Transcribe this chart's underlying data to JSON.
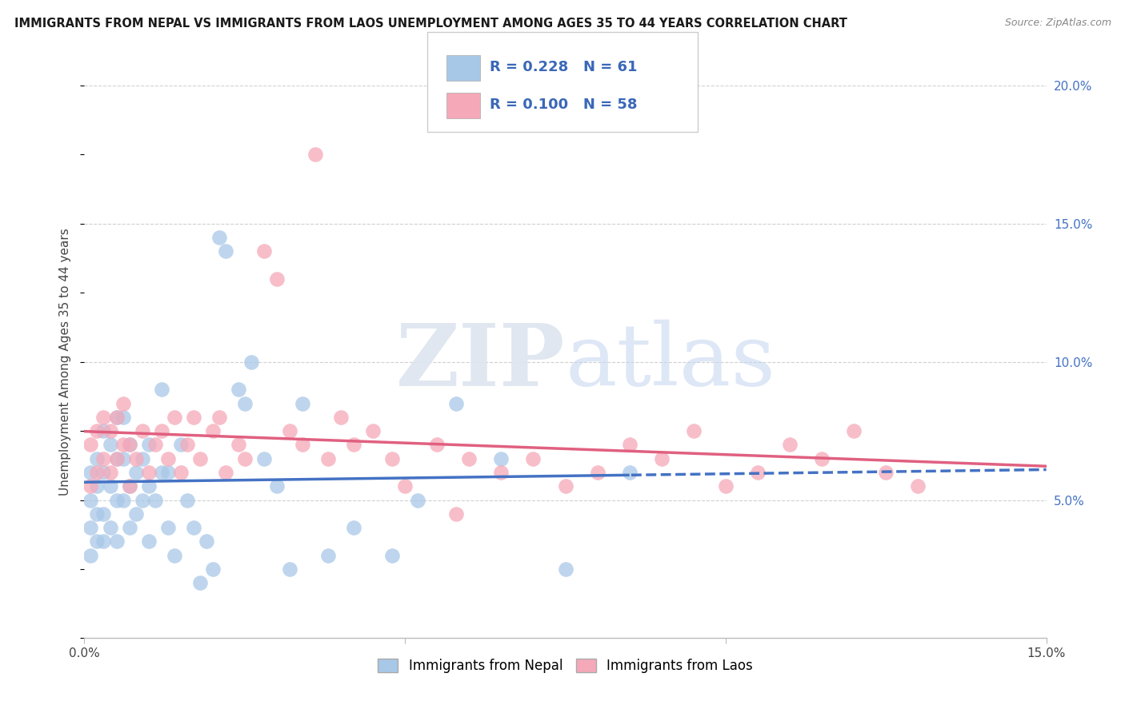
{
  "title": "IMMIGRANTS FROM NEPAL VS IMMIGRANTS FROM LAOS UNEMPLOYMENT AMONG AGES 35 TO 44 YEARS CORRELATION CHART",
  "source": "Source: ZipAtlas.com",
  "ylabel": "Unemployment Among Ages 35 to 44 years",
  "xlim": [
    0,
    0.15
  ],
  "ylim": [
    0,
    0.2
  ],
  "nepal_color": "#a8c8e8",
  "laos_color": "#f5a8b8",
  "nepal_line_color": "#4472c4",
  "laos_line_color": "#e06080",
  "nepal_R": 0.228,
  "nepal_N": 61,
  "laos_R": 0.1,
  "laos_N": 58,
  "nepal_x": [
    0.001,
    0.001,
    0.001,
    0.001,
    0.002,
    0.002,
    0.002,
    0.002,
    0.003,
    0.003,
    0.003,
    0.003,
    0.004,
    0.004,
    0.004,
    0.005,
    0.005,
    0.005,
    0.005,
    0.006,
    0.006,
    0.006,
    0.007,
    0.007,
    0.007,
    0.008,
    0.008,
    0.009,
    0.009,
    0.01,
    0.01,
    0.01,
    0.011,
    0.012,
    0.012,
    0.013,
    0.013,
    0.014,
    0.015,
    0.016,
    0.017,
    0.018,
    0.019,
    0.02,
    0.021,
    0.022,
    0.024,
    0.025,
    0.026,
    0.028,
    0.03,
    0.032,
    0.034,
    0.038,
    0.042,
    0.048,
    0.052,
    0.058,
    0.065,
    0.075,
    0.085
  ],
  "nepal_y": [
    0.03,
    0.04,
    0.05,
    0.06,
    0.035,
    0.045,
    0.055,
    0.065,
    0.035,
    0.045,
    0.06,
    0.075,
    0.04,
    0.055,
    0.07,
    0.035,
    0.05,
    0.065,
    0.08,
    0.05,
    0.065,
    0.08,
    0.04,
    0.055,
    0.07,
    0.045,
    0.06,
    0.05,
    0.065,
    0.035,
    0.055,
    0.07,
    0.05,
    0.06,
    0.09,
    0.04,
    0.06,
    0.03,
    0.07,
    0.05,
    0.04,
    0.02,
    0.035,
    0.025,
    0.145,
    0.14,
    0.09,
    0.085,
    0.1,
    0.065,
    0.055,
    0.025,
    0.085,
    0.03,
    0.04,
    0.03,
    0.05,
    0.085,
    0.065,
    0.025,
    0.06
  ],
  "laos_x": [
    0.001,
    0.001,
    0.002,
    0.002,
    0.003,
    0.003,
    0.004,
    0.004,
    0.005,
    0.005,
    0.006,
    0.006,
    0.007,
    0.007,
    0.008,
    0.009,
    0.01,
    0.011,
    0.012,
    0.013,
    0.014,
    0.015,
    0.016,
    0.017,
    0.018,
    0.02,
    0.021,
    0.022,
    0.024,
    0.025,
    0.028,
    0.03,
    0.032,
    0.034,
    0.036,
    0.038,
    0.04,
    0.042,
    0.045,
    0.048,
    0.05,
    0.055,
    0.058,
    0.06,
    0.065,
    0.07,
    0.075,
    0.08,
    0.085,
    0.09,
    0.095,
    0.1,
    0.105,
    0.11,
    0.115,
    0.12,
    0.125,
    0.13
  ],
  "laos_y": [
    0.055,
    0.07,
    0.06,
    0.075,
    0.065,
    0.08,
    0.06,
    0.075,
    0.065,
    0.08,
    0.07,
    0.085,
    0.055,
    0.07,
    0.065,
    0.075,
    0.06,
    0.07,
    0.075,
    0.065,
    0.08,
    0.06,
    0.07,
    0.08,
    0.065,
    0.075,
    0.08,
    0.06,
    0.07,
    0.065,
    0.14,
    0.13,
    0.075,
    0.07,
    0.175,
    0.065,
    0.08,
    0.07,
    0.075,
    0.065,
    0.055,
    0.07,
    0.045,
    0.065,
    0.06,
    0.065,
    0.055,
    0.06,
    0.07,
    0.065,
    0.075,
    0.055,
    0.06,
    0.07,
    0.065,
    0.075,
    0.06,
    0.055
  ],
  "watermark_zip": "ZIP",
  "watermark_atlas": "atlas",
  "background_color": "#ffffff",
  "grid_color": "#d0d0d0",
  "legend_label_nepal": "Immigrants from Nepal",
  "legend_label_laos": "Immigrants from Laos"
}
